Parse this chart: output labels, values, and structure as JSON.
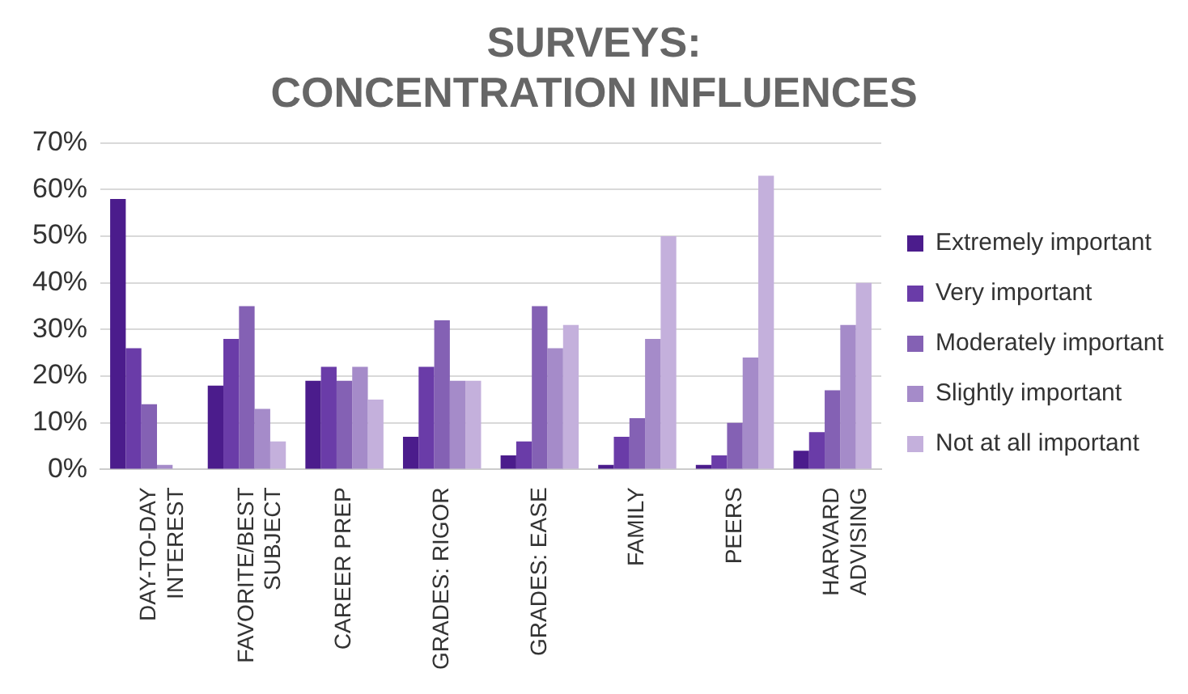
{
  "chart_data": {
    "type": "bar",
    "title": "SURVEYS:\nCONCENTRATION INFLUENCES",
    "categories": [
      "DAY-TO-DAY\nINTEREST",
      "FAVORITE/BEST\nSUBJECT",
      "CAREER PREP",
      "GRADES: RIGOR",
      "GRADES: EASE",
      "FAMILY",
      "PEERS",
      "HARVARD\nADVISING"
    ],
    "series": [
      {
        "name": "Extremely important",
        "color": "#4b1c8c",
        "values": [
          58,
          18,
          19,
          7,
          3,
          1,
          1,
          4
        ]
      },
      {
        "name": "Very important",
        "color": "#6a3ca8",
        "values": [
          26,
          28,
          22,
          22,
          6,
          7,
          3,
          8
        ]
      },
      {
        "name": "Moderately important",
        "color": "#8461b4",
        "values": [
          14,
          35,
          19,
          32,
          35,
          11,
          10,
          17
        ]
      },
      {
        "name": "Slightly important",
        "color": "#a58bc9",
        "values": [
          1,
          13,
          22,
          19,
          26,
          28,
          24,
          31
        ]
      },
      {
        "name": "Not at all important",
        "color": "#c4b0dc",
        "values": [
          0,
          6,
          15,
          19,
          31,
          50,
          63,
          40
        ]
      }
    ],
    "ylim": [
      0,
      70
    ],
    "yticks": [
      {
        "value": 0,
        "label": "0%"
      },
      {
        "value": 10,
        "label": "10%"
      },
      {
        "value": 20,
        "label": "20%"
      },
      {
        "value": 30,
        "label": "30%"
      },
      {
        "value": 40,
        "label": "40%"
      },
      {
        "value": 50,
        "label": "50%"
      },
      {
        "value": 60,
        "label": "60%"
      },
      {
        "value": 70,
        "label": "70%"
      }
    ],
    "grid": "y",
    "legend": "right"
  }
}
